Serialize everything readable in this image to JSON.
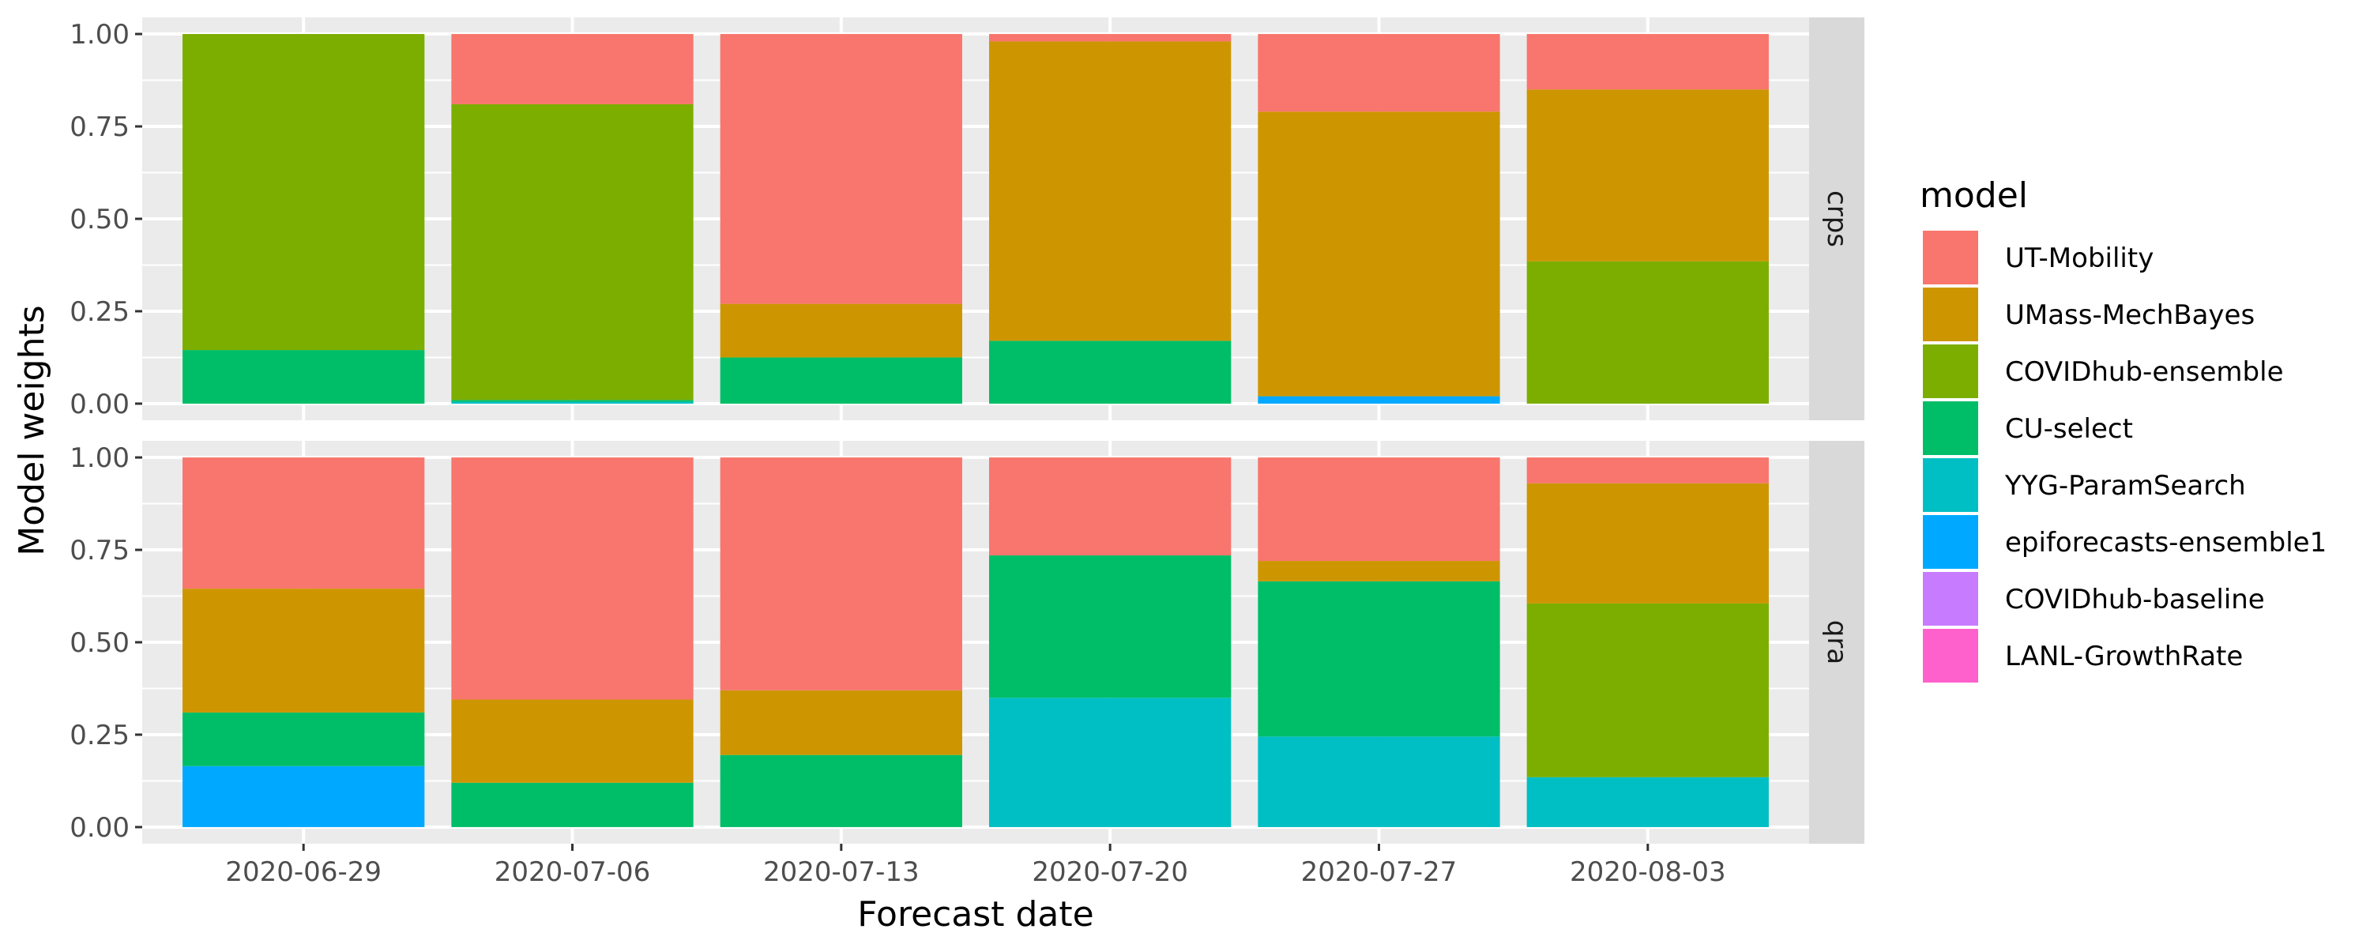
{
  "chart_data": {
    "type": "bar",
    "stacked": true,
    "xlabel": "Forecast date",
    "ylabel": "Model weights",
    "ylim": [
      0,
      1
    ],
    "yticks": [
      "0.00",
      "0.25",
      "0.50",
      "0.75",
      "1.00"
    ],
    "categories": [
      "2020-06-29",
      "2020-07-06",
      "2020-07-13",
      "2020-07-20",
      "2020-07-27",
      "2020-08-03"
    ],
    "legend": {
      "title": "model",
      "position": "right",
      "entries": [
        {
          "name": "UT-Mobility",
          "color": "#F8766D"
        },
        {
          "name": "UMass-MechBayes",
          "color": "#CD9600"
        },
        {
          "name": "COVIDhub-ensemble",
          "color": "#7CAE00"
        },
        {
          "name": "CU-select",
          "color": "#00BE67"
        },
        {
          "name": "YYG-ParamSearch",
          "color": "#00BFC4"
        },
        {
          "name": "epiforecasts-ensemble1",
          "color": "#00A9FF"
        },
        {
          "name": "COVIDhub-baseline",
          "color": "#C77CFF"
        },
        {
          "name": "LANL-GrowthRate",
          "color": "#FF61CC"
        }
      ]
    },
    "panels": [
      {
        "strip": "crps",
        "series": [
          {
            "name": "UT-Mobility",
            "values": [
              0.0,
              0.19,
              0.73,
              0.02,
              0.21,
              0.15
            ]
          },
          {
            "name": "UMass-MechBayes",
            "values": [
              0.0,
              0.0,
              0.145,
              0.81,
              0.77,
              0.465
            ]
          },
          {
            "name": "COVIDhub-ensemble",
            "values": [
              0.855,
              0.8,
              0.0,
              0.0,
              0.0,
              0.385
            ]
          },
          {
            "name": "CU-select",
            "values": [
              0.145,
              0.005,
              0.125,
              0.17,
              0.0,
              0.0
            ]
          },
          {
            "name": "YYG-ParamSearch",
            "values": [
              0.0,
              0.005,
              0.0,
              0.0,
              0.0,
              0.0
            ]
          },
          {
            "name": "epiforecasts-ensemble1",
            "values": [
              0.0,
              0.0,
              0.0,
              0.0,
              0.02,
              0.0
            ]
          },
          {
            "name": "COVIDhub-baseline",
            "values": [
              0,
              0,
              0,
              0,
              0,
              0
            ]
          },
          {
            "name": "LANL-GrowthRate",
            "values": [
              0,
              0,
              0,
              0,
              0,
              0
            ]
          }
        ]
      },
      {
        "strip": "qra",
        "series": [
          {
            "name": "UT-Mobility",
            "values": [
              0.355,
              0.655,
              0.63,
              0.265,
              0.28,
              0.07
            ]
          },
          {
            "name": "UMass-MechBayes",
            "values": [
              0.335,
              0.225,
              0.175,
              0.0,
              0.055,
              0.325
            ]
          },
          {
            "name": "COVIDhub-ensemble",
            "values": [
              0.0,
              0.0,
              0.0,
              0.0,
              0.0,
              0.47
            ]
          },
          {
            "name": "CU-select",
            "values": [
              0.145,
              0.12,
              0.195,
              0.385,
              0.42,
              0.0
            ]
          },
          {
            "name": "YYG-ParamSearch",
            "values": [
              0.0,
              0.0,
              0.0,
              0.35,
              0.245,
              0.135
            ]
          },
          {
            "name": "epiforecasts-ensemble1",
            "values": [
              0.165,
              0.0,
              0.0,
              0.0,
              0.0,
              0.0
            ]
          },
          {
            "name": "COVIDhub-baseline",
            "values": [
              0,
              0,
              0,
              0,
              0,
              0
            ]
          },
          {
            "name": "LANL-GrowthRate",
            "values": [
              0,
              0,
              0,
              0,
              0,
              0
            ]
          }
        ]
      }
    ]
  }
}
